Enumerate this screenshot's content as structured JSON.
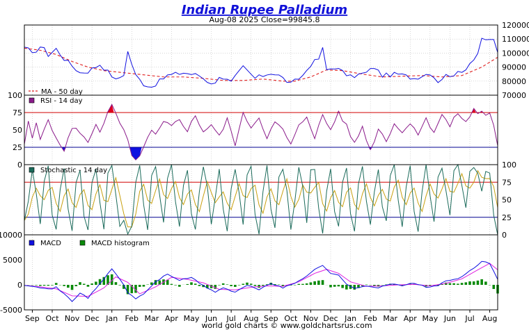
{
  "chart_data": {
    "type": "line",
    "title": "Indian Rupee Palladium",
    "subtitle": "Aug-08  2025   Close=99845.8",
    "footer": "world gold charts © www.goldchartsrus.com",
    "x_tick_labels": [
      "Sep",
      "Oct",
      "Nov",
      "Dec",
      "Jan",
      "Feb",
      "Mar",
      "Apr",
      "May",
      "Jun",
      "Jul",
      "Aug",
      "Sep",
      "Oct",
      "Nov",
      "Dec",
      "Jan",
      "Feb",
      "Mar",
      "Apr",
      "May",
      "Jun",
      "Jul",
      "Aug"
    ],
    "legend": {
      "ma": "MA - 50 day",
      "rsi": "RSI - 14 day",
      "stochastic": "Stochastic - 14 day",
      "macd": "MACD",
      "macd_histogram": "MACD histogram"
    },
    "colors": {
      "price": "#1010e0",
      "ma": "#e02020",
      "rsi": "#8a1a8a",
      "rsi_overbought": "#e00020",
      "rsi_oversold": "#1010e0",
      "stoch_k": "#1a6a5a",
      "stoch_d": "#c8a010",
      "macd": "#1010e0",
      "signal": "#e020e0",
      "histogram": "#0a8a0a",
      "upper_line": "#d00000",
      "lower_line": "#000090"
    },
    "price_panel": {
      "ylim": [
        70000,
        120000
      ],
      "yticks": [
        "120000",
        "110000",
        "100000",
        "90000",
        "80000",
        "70000"
      ],
      "ytick_values": [
        120000,
        110000,
        100000,
        90000,
        80000,
        70000
      ],
      "price_anchors": [
        [
          0,
          103000
        ],
        [
          3,
          101000
        ],
        [
          5,
          105000
        ],
        [
          6,
          98000
        ],
        [
          8,
          103000
        ],
        [
          10,
          96000
        ],
        [
          14,
          86000
        ],
        [
          16,
          87000
        ],
        [
          19,
          92000
        ],
        [
          22,
          84000
        ],
        [
          23,
          80500
        ],
        [
          25,
          85000
        ],
        [
          26,
          101000
        ],
        [
          28,
          84000
        ],
        [
          30,
          78000
        ],
        [
          32,
          76000
        ],
        [
          34,
          80000
        ],
        [
          36,
          84000
        ],
        [
          40,
          86000
        ],
        [
          44,
          84000
        ],
        [
          46,
          80000
        ],
        [
          48,
          78000
        ],
        [
          49,
          84000
        ],
        [
          52,
          79000
        ],
        [
          55,
          90000
        ],
        [
          58,
          82000
        ],
        [
          62,
          86000
        ],
        [
          64,
          84000
        ],
        [
          67,
          78000
        ],
        [
          70,
          84000
        ],
        [
          72,
          92000
        ],
        [
          74,
          96000
        ],
        [
          75,
          103000
        ],
        [
          76,
          88000
        ],
        [
          78,
          90000
        ],
        [
          82,
          83000
        ],
        [
          86,
          86000
        ],
        [
          88,
          90000
        ],
        [
          90,
          84000
        ],
        [
          94,
          85000
        ],
        [
          98,
          82000
        ],
        [
          102,
          86000
        ],
        [
          104,
          80000
        ],
        [
          106,
          84000
        ],
        [
          110,
          86000
        ],
        [
          114,
          100000
        ],
        [
          115,
          111000
        ],
        [
          116,
          108000
        ],
        [
          118,
          110000
        ],
        [
          119,
          99800
        ]
      ],
      "ma_anchors": [
        [
          0,
          103500
        ],
        [
          4,
          102000
        ],
        [
          8,
          99000
        ],
        [
          12,
          94000
        ],
        [
          16,
          90000
        ],
        [
          20,
          87500
        ],
        [
          25,
          86000
        ],
        [
          30,
          84500
        ],
        [
          35,
          83000
        ],
        [
          40,
          83000
        ],
        [
          45,
          82000
        ],
        [
          50,
          80500
        ],
        [
          55,
          80500
        ],
        [
          60,
          81500
        ],
        [
          65,
          80000
        ],
        [
          68,
          80000
        ],
        [
          72,
          83000
        ],
        [
          76,
          88000
        ],
        [
          80,
          87500
        ],
        [
          85,
          85000
        ],
        [
          90,
          83000
        ],
        [
          95,
          83500
        ],
        [
          100,
          84000
        ],
        [
          105,
          83000
        ],
        [
          110,
          84000
        ],
        [
          115,
          90000
        ],
        [
          119,
          97000
        ]
      ]
    },
    "rsi_panel": {
      "ylim": [
        0,
        100
      ],
      "overbought": 75,
      "oversold": 25,
      "yticks_left": [
        "100",
        "75",
        "50",
        "25",
        "0"
      ],
      "ytick_values": [
        100,
        75,
        50,
        25,
        0
      ],
      "anchors": [
        [
          0,
          30
        ],
        [
          1,
          60
        ],
        [
          2,
          38
        ],
        [
          3,
          58
        ],
        [
          4,
          36
        ],
        [
          6,
          68
        ],
        [
          8,
          35
        ],
        [
          10,
          22
        ],
        [
          12,
          52
        ],
        [
          14,
          48
        ],
        [
          16,
          30
        ],
        [
          18,
          60
        ],
        [
          19,
          48
        ],
        [
          21,
          75
        ],
        [
          22,
          84
        ],
        [
          24,
          60
        ],
        [
          26,
          35
        ],
        [
          27,
          10
        ],
        [
          28,
          5
        ],
        [
          30,
          25
        ],
        [
          32,
          48
        ],
        [
          33,
          42
        ],
        [
          35,
          60
        ],
        [
          37,
          55
        ],
        [
          39,
          65
        ],
        [
          41,
          50
        ],
        [
          43,
          70
        ],
        [
          45,
          48
        ],
        [
          47,
          58
        ],
        [
          49,
          40
        ],
        [
          51,
          65
        ],
        [
          53,
          30
        ],
        [
          55,
          72
        ],
        [
          57,
          55
        ],
        [
          59,
          68
        ],
        [
          61,
          40
        ],
        [
          63,
          60
        ],
        [
          65,
          50
        ],
        [
          67,
          28
        ],
        [
          69,
          55
        ],
        [
          71,
          70
        ],
        [
          73,
          40
        ],
        [
          75,
          70
        ],
        [
          77,
          50
        ],
        [
          79,
          76
        ],
        [
          81,
          55
        ],
        [
          83,
          30
        ],
        [
          85,
          55
        ],
        [
          87,
          20
        ],
        [
          89,
          52
        ],
        [
          91,
          35
        ],
        [
          93,
          60
        ],
        [
          95,
          45
        ],
        [
          97,
          62
        ],
        [
          99,
          45
        ],
        [
          101,
          65
        ],
        [
          103,
          48
        ],
        [
          105,
          72
        ],
        [
          107,
          55
        ],
        [
          109,
          75
        ],
        [
          111,
          60
        ],
        [
          113,
          80
        ],
        [
          114,
          74
        ],
        [
          115,
          78
        ],
        [
          116,
          70
        ],
        [
          117,
          76
        ],
        [
          118,
          55
        ],
        [
          119,
          25
        ]
      ]
    },
    "stochastic_panel": {
      "ylim": [
        0,
        100
      ],
      "upper": 75,
      "lower": 25,
      "yticks_right": [
        "100",
        "75",
        "50",
        "25",
        "0"
      ],
      "ytick_values": [
        100,
        75,
        50,
        25,
        0
      ],
      "k_anchors": [
        [
          0,
          20
        ],
        [
          1,
          50
        ],
        [
          2,
          90
        ],
        [
          3,
          55
        ],
        [
          4,
          20
        ],
        [
          5,
          80
        ],
        [
          6,
          95
        ],
        [
          7,
          30
        ],
        [
          8,
          8
        ],
        [
          9,
          60
        ],
        [
          10,
          95
        ],
        [
          11,
          40
        ],
        [
          12,
          5
        ],
        [
          13,
          70
        ],
        [
          14,
          90
        ],
        [
          15,
          30
        ],
        [
          16,
          10
        ],
        [
          17,
          75
        ],
        [
          18,
          98
        ],
        [
          19,
          45
        ],
        [
          20,
          5
        ],
        [
          21,
          85
        ],
        [
          22,
          98
        ],
        [
          23,
          60
        ],
        [
          24,
          10
        ],
        [
          25,
          20
        ],
        [
          26,
          5
        ],
        [
          27,
          15
        ],
        [
          28,
          70
        ],
        [
          29,
          95
        ],
        [
          30,
          40
        ],
        [
          31,
          10
        ],
        [
          32,
          80
        ],
        [
          33,
          95
        ],
        [
          34,
          55
        ],
        [
          35,
          15
        ],
        [
          36,
          80
        ],
        [
          37,
          98
        ],
        [
          38,
          45
        ],
        [
          39,
          10
        ],
        [
          40,
          75
        ],
        [
          41,
          95
        ],
        [
          42,
          30
        ],
        [
          43,
          5
        ],
        [
          44,
          60
        ],
        [
          45,
          98
        ],
        [
          46,
          70
        ],
        [
          47,
          15
        ],
        [
          48,
          50
        ],
        [
          49,
          95
        ],
        [
          50,
          40
        ],
        [
          51,
          8
        ],
        [
          52,
          70
        ],
        [
          53,
          98
        ],
        [
          54,
          55
        ],
        [
          55,
          10
        ],
        [
          56,
          85
        ],
        [
          57,
          98
        ],
        [
          58,
          30
        ],
        [
          59,
          5
        ],
        [
          60,
          65
        ],
        [
          61,
          95
        ],
        [
          62,
          40
        ],
        [
          63,
          10
        ],
        [
          64,
          80
        ],
        [
          65,
          98
        ],
        [
          66,
          60
        ],
        [
          67,
          8
        ],
        [
          68,
          50
        ],
        [
          69,
          95
        ],
        [
          70,
          70
        ],
        [
          71,
          20
        ],
        [
          72,
          95
        ],
        [
          73,
          98
        ],
        [
          74,
          40
        ],
        [
          75,
          5
        ],
        [
          76,
          60
        ],
        [
          77,
          90
        ],
        [
          78,
          30
        ],
        [
          79,
          8
        ],
        [
          80,
          75
        ],
        [
          81,
          95
        ],
        [
          82,
          35
        ],
        [
          83,
          5
        ],
        [
          84,
          70
        ],
        [
          85,
          98
        ],
        [
          86,
          50
        ],
        [
          87,
          10
        ],
        [
          88,
          60
        ],
        [
          89,
          95
        ],
        [
          90,
          40
        ],
        [
          91,
          15
        ],
        [
          92,
          80
        ],
        [
          93,
          98
        ],
        [
          94,
          45
        ],
        [
          95,
          10
        ],
        [
          96,
          70
        ],
        [
          97,
          95
        ],
        [
          98,
          30
        ],
        [
          99,
          5
        ],
        [
          100,
          65
        ],
        [
          101,
          98
        ],
        [
          102,
          55
        ],
        [
          103,
          20
        ],
        [
          104,
          85
        ],
        [
          105,
          98
        ],
        [
          106,
          60
        ],
        [
          107,
          30
        ],
        [
          108,
          90
        ],
        [
          109,
          98
        ],
        [
          110,
          70
        ],
        [
          111,
          40
        ],
        [
          112,
          95
        ],
        [
          113,
          98
        ],
        [
          114,
          85
        ],
        [
          115,
          60
        ],
        [
          116,
          95
        ],
        [
          117,
          90
        ],
        [
          118,
          30
        ],
        [
          119,
          2
        ]
      ]
    },
    "macd_panel": {
      "ylim": [
        -5000,
        10000
      ],
      "yticks_left": [
        "10000",
        "5000",
        "0",
        "-5000"
      ],
      "ytick_values": [
        10000,
        5000,
        0,
        -5000
      ],
      "macd_anchors": [
        [
          0,
          0
        ],
        [
          3,
          -300
        ],
        [
          6,
          -900
        ],
        [
          8,
          -500
        ],
        [
          10,
          -1800
        ],
        [
          12,
          -3300
        ],
        [
          14,
          -1600
        ],
        [
          16,
          -2600
        ],
        [
          18,
          -800
        ],
        [
          20,
          1200
        ],
        [
          22,
          3200
        ],
        [
          24,
          1200
        ],
        [
          26,
          -1500
        ],
        [
          28,
          -2800
        ],
        [
          30,
          -1800
        ],
        [
          33,
          600
        ],
        [
          36,
          2200
        ],
        [
          39,
          900
        ],
        [
          42,
          1500
        ],
        [
          45,
          -200
        ],
        [
          48,
          -1400
        ],
        [
          50,
          -600
        ],
        [
          53,
          -1500
        ],
        [
          56,
          -100
        ],
        [
          59,
          -900
        ],
        [
          62,
          300
        ],
        [
          65,
          -600
        ],
        [
          68,
          300
        ],
        [
          71,
          1800
        ],
        [
          73,
          3200
        ],
        [
          75,
          3900
        ],
        [
          77,
          2200
        ],
        [
          79,
          2000
        ],
        [
          81,
          200
        ],
        [
          83,
          -800
        ],
        [
          86,
          -200
        ],
        [
          89,
          -500
        ],
        [
          92,
          200
        ],
        [
          95,
          -200
        ],
        [
          98,
          400
        ],
        [
          101,
          -500
        ],
        [
          104,
          -100
        ],
        [
          106,
          700
        ],
        [
          109,
          1200
        ],
        [
          111,
          2300
        ],
        [
          113,
          3200
        ],
        [
          115,
          4700
        ],
        [
          117,
          4300
        ],
        [
          119,
          1200
        ]
      ],
      "signal_anchors": [
        [
          0,
          -100
        ],
        [
          4,
          -400
        ],
        [
          8,
          -800
        ],
        [
          12,
          -2200
        ],
        [
          16,
          -2300
        ],
        [
          20,
          -600
        ],
        [
          23,
          1600
        ],
        [
          26,
          500
        ],
        [
          29,
          -1800
        ],
        [
          33,
          -400
        ],
        [
          37,
          1500
        ],
        [
          41,
          1100
        ],
        [
          45,
          400
        ],
        [
          49,
          -900
        ],
        [
          53,
          -1000
        ],
        [
          57,
          -500
        ],
        [
          61,
          -200
        ],
        [
          65,
          -300
        ],
        [
          69,
          600
        ],
        [
          73,
          2300
        ],
        [
          76,
          3100
        ],
        [
          79,
          2300
        ],
        [
          82,
          600
        ],
        [
          86,
          -300
        ],
        [
          90,
          -200
        ],
        [
          94,
          0
        ],
        [
          98,
          100
        ],
        [
          102,
          -200
        ],
        [
          106,
          300
        ],
        [
          110,
          1200
        ],
        [
          114,
          3000
        ],
        [
          117,
          4300
        ],
        [
          119,
          3000
        ]
      ]
    }
  }
}
